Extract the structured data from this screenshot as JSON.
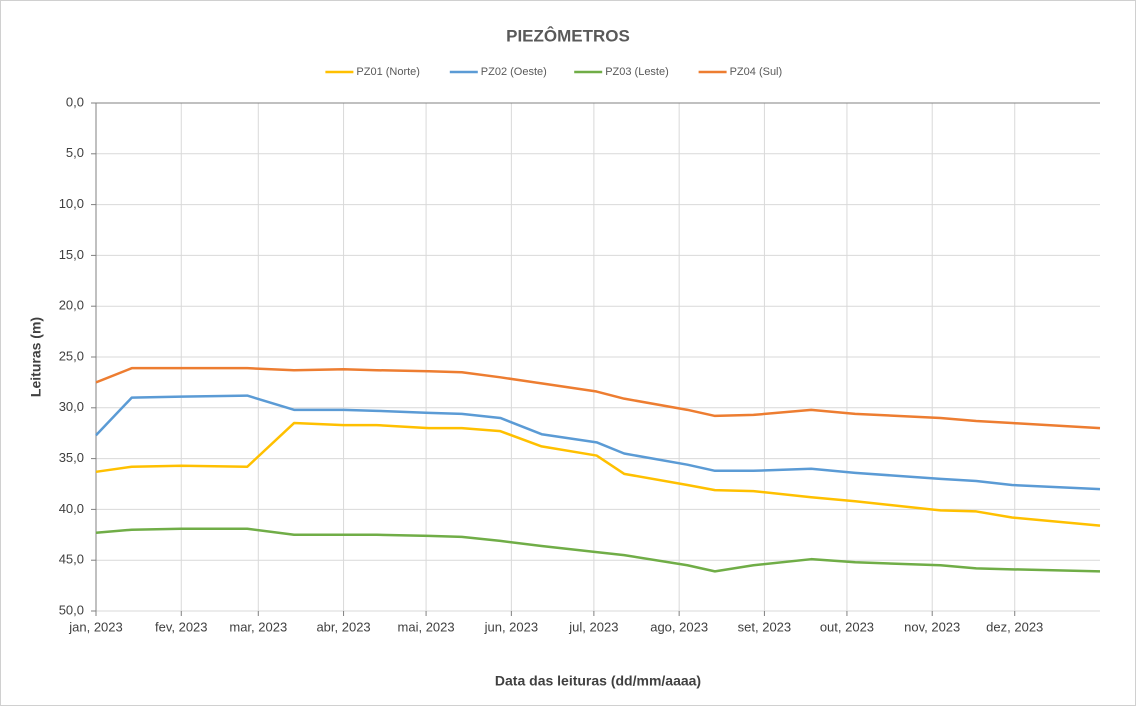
{
  "chart_data": {
    "type": "line",
    "title": "PIEZÔMETROS",
    "xlabel": "Data das leituras (dd/mm/aaaa)",
    "ylabel": "Leituras (m)",
    "legend": "top",
    "grid": true,
    "yreversed": true,
    "xlim": [
      0,
      365
    ],
    "xticks": [
      {
        "value": 0,
        "label": "jan, 2023"
      },
      {
        "value": 31,
        "label": "fev, 2023"
      },
      {
        "value": 59,
        "label": "mar, 2023"
      },
      {
        "value": 90,
        "label": "abr, 2023"
      },
      {
        "value": 120,
        "label": "mai, 2023"
      },
      {
        "value": 151,
        "label": "jun, 2023"
      },
      {
        "value": 181,
        "label": "jul, 2023"
      },
      {
        "value": 212,
        "label": "ago, 2023"
      },
      {
        "value": 243,
        "label": "set, 2023"
      },
      {
        "value": 273,
        "label": "out, 2023"
      },
      {
        "value": 304,
        "label": "nov, 2023"
      },
      {
        "value": 334,
        "label": "dez, 2023"
      }
    ],
    "ylim": [
      0,
      50
    ],
    "yticks": [
      {
        "value": 0,
        "label": "0,0"
      },
      {
        "value": 5,
        "label": "5,0"
      },
      {
        "value": 10,
        "label": "10,0"
      },
      {
        "value": 15,
        "label": "15,0"
      },
      {
        "value": 20,
        "label": "20,0"
      },
      {
        "value": 25,
        "label": "25,0"
      },
      {
        "value": 30,
        "label": "30,0"
      },
      {
        "value": 35,
        "label": "35,0"
      },
      {
        "value": 40,
        "label": "40,0"
      },
      {
        "value": 45,
        "label": "45,0"
      },
      {
        "value": 50,
        "label": "50,0"
      }
    ],
    "x": [
      0,
      13,
      31,
      55,
      72,
      90,
      102,
      121,
      133,
      147,
      162,
      182,
      192,
      215,
      225,
      239,
      260,
      276,
      307,
      320,
      333,
      365
    ],
    "series": [
      {
        "name": "PZ01 (Norte)",
        "color": "#ffc000",
        "values": [
          36.3,
          35.8,
          35.7,
          35.8,
          31.5,
          31.7,
          31.7,
          32.0,
          32.0,
          32.3,
          33.8,
          34.7,
          36.5,
          37.6,
          38.1,
          38.2,
          38.8,
          39.2,
          40.1,
          40.2,
          40.8,
          41.6
        ]
      },
      {
        "name": "PZ02 (Oeste)",
        "color": "#5b9bd5",
        "values": [
          32.7,
          29.0,
          28.9,
          28.8,
          30.2,
          30.2,
          30.3,
          30.5,
          30.6,
          31.0,
          32.6,
          33.4,
          34.5,
          35.6,
          36.2,
          36.2,
          36.0,
          36.4,
          37.0,
          37.2,
          37.6,
          38.0
        ]
      },
      {
        "name": "PZ03 (Leste)",
        "color": "#70ad47",
        "values": [
          42.3,
          42.0,
          41.9,
          41.9,
          42.5,
          42.5,
          42.5,
          42.6,
          42.7,
          43.1,
          43.6,
          44.2,
          44.5,
          45.5,
          46.1,
          45.5,
          44.9,
          45.2,
          45.5,
          45.8,
          45.9,
          46.1
        ]
      },
      {
        "name": "PZ04 (Sul)",
        "color": "#ed7d31",
        "values": [
          27.5,
          26.1,
          26.1,
          26.1,
          26.3,
          26.2,
          26.3,
          26.4,
          26.5,
          27.0,
          27.6,
          28.4,
          29.1,
          30.2,
          30.8,
          30.7,
          30.2,
          30.6,
          31.0,
          31.3,
          31.5,
          32.0
        ]
      }
    ]
  }
}
